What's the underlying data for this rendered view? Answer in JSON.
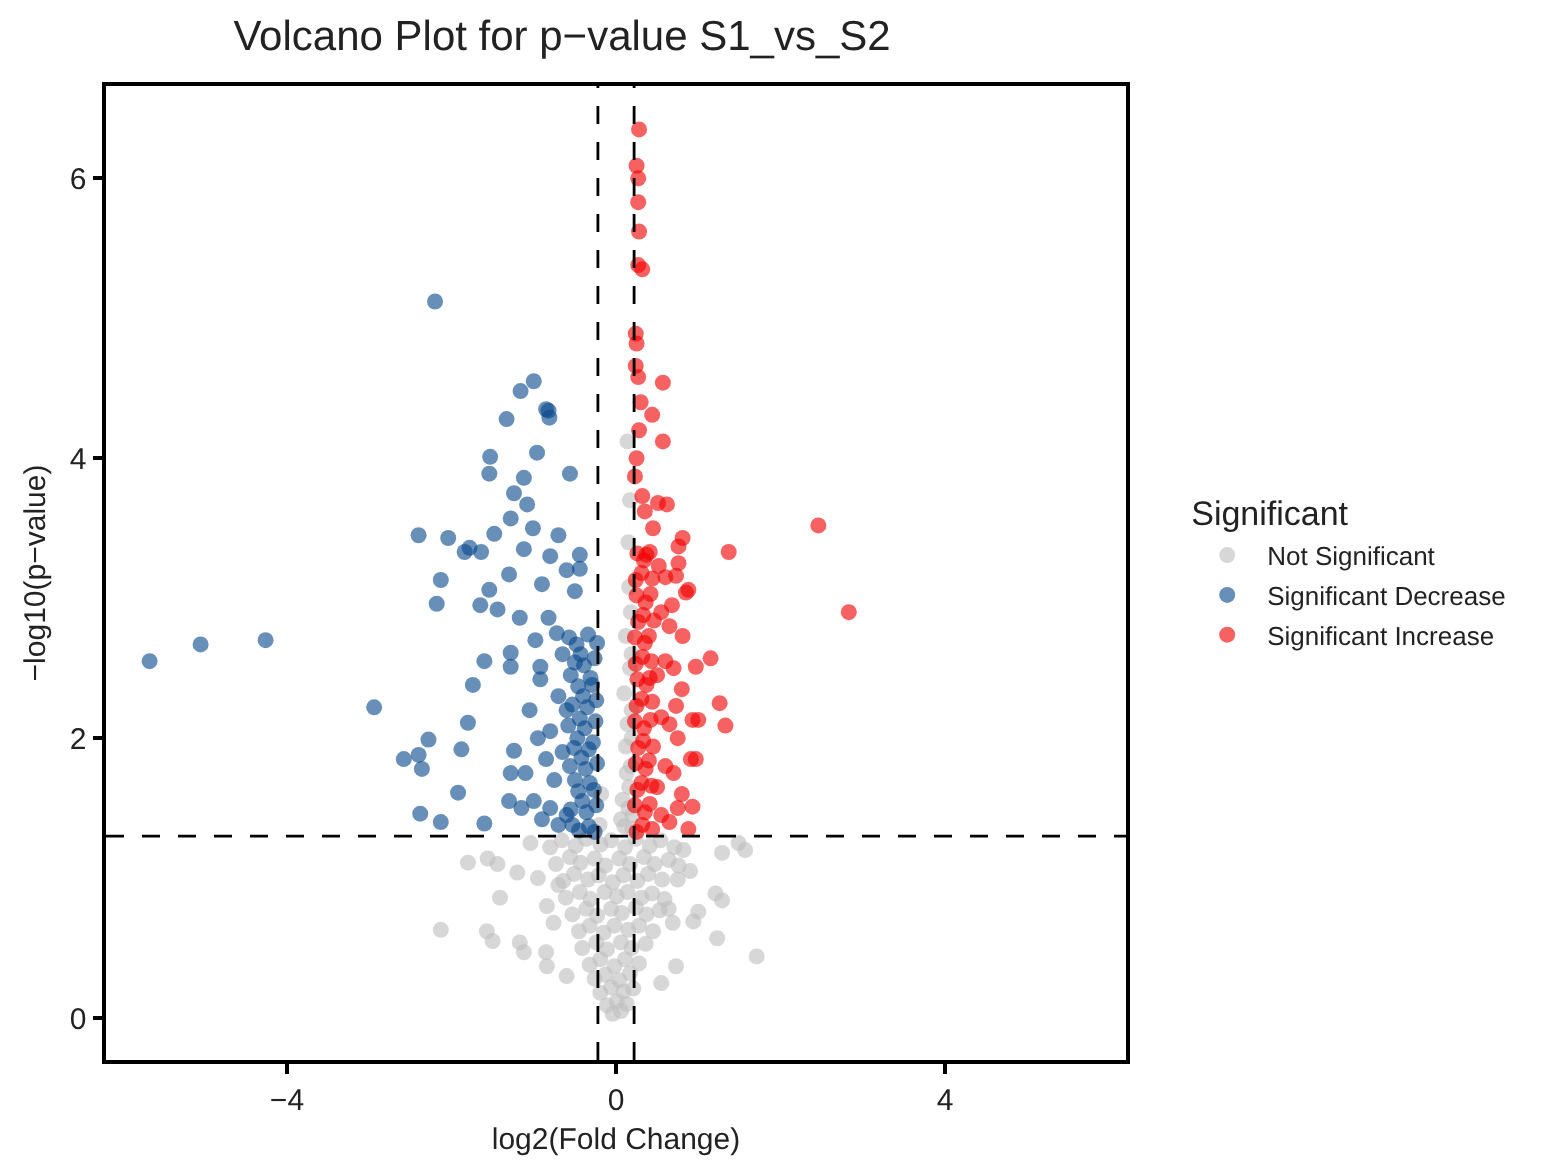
{
  "chart_data": {
    "type": "scatter",
    "title": "Volcano Plot for p−value S1_vs_S2",
    "xlabel": "log2(Fold Change)",
    "ylabel": "−log10(p−value)",
    "legend_title": "Significant",
    "legend": "right",
    "marker": "circle",
    "grid": false,
    "xlim": [
      -6.2,
      6.2
    ],
    "xticks": [
      {
        "value": -4,
        "label": "−4"
      },
      0,
      4
    ],
    "ylim": [
      -0.3,
      6.66
    ],
    "yticks": [
      0,
      2,
      4,
      6
    ],
    "ref_lines": [
      {
        "axis": "x",
        "value": -0.22,
        "color": "#000000",
        "line_style": "dashed"
      },
      {
        "axis": "x",
        "value": 0.22,
        "color": "#000000",
        "line_style": "dashed"
      },
      {
        "axis": "y",
        "value": 1.3,
        "color": "#000000",
        "line_style": "dashed"
      }
    ],
    "series": [
      {
        "name": "Not Significant",
        "color": "#bebebe",
        "x": [
          -0.8,
          -0.66,
          -0.49,
          -0.36,
          -0.19,
          -0.06,
          0.11,
          0.24,
          0.41,
          0.54,
          0.71,
          -0.73,
          -0.56,
          -0.43,
          -0.26,
          -0.13,
          0.04,
          0.17,
          0.34,
          0.47,
          0.64,
          -0.64,
          -0.51,
          -0.34,
          -0.21,
          -0.04,
          0.09,
          0.26,
          0.39,
          0.56,
          -0.61,
          -0.44,
          -0.31,
          -0.14,
          0.01,
          0.14,
          0.31,
          0.44,
          0.59,
          -0.53,
          -0.36,
          -0.23,
          -0.06,
          0.07,
          0.24,
          0.37,
          0.53,
          -0.45,
          -0.32,
          -0.15,
          -0.02,
          0.15,
          0.28,
          0.45,
          -0.41,
          -0.24,
          -0.11,
          0.06,
          0.19,
          0.36,
          -0.32,
          -0.19,
          -0.02,
          0.11,
          0.28,
          -0.26,
          -0.13,
          0.04,
          0.17,
          -0.19,
          -0.06,
          0.09,
          0.21,
          -0.11,
          0.01,
          0.13,
          -0.04,
          0.06,
          -2.13,
          -1.8,
          -1.56,
          -1.44,
          -1.2,
          -1.41,
          -1.57,
          -1.5,
          -1.17,
          -1.12,
          -0.85,
          -0.84,
          -1.04,
          -0.84,
          -0.76,
          1.49,
          1.57,
          1.29,
          0.82,
          1.21,
          1.29,
          1.0,
          0.94,
          1.23,
          1.71,
          0.76,
          0.75,
          0.73,
          0.64,
          0.69,
          -0.95,
          -0.6,
          0.55,
          0.9,
          -0.7,
          0.14,
          0.16,
          0.12,
          0.1,
          0.12,
          0.08,
          0.1,
          0.15,
          0.18,
          0.14,
          0.17,
          0.15,
          0.18,
          0.19,
          0.13,
          0.06,
          0.17,
          0.19,
          0.2,
          0.16,
          0.19,
          0.2,
          -0.2,
          -0.18
        ],
        "values": [
          1.22,
          1.27,
          1.23,
          1.28,
          1.24,
          1.27,
          1.22,
          1.28,
          1.23,
          1.27,
          1.22,
          1.1,
          1.15,
          1.11,
          1.14,
          1.09,
          1.14,
          1.1,
          1.15,
          1.1,
          1.13,
          0.98,
          1.03,
          0.99,
          1.02,
          0.97,
          1.02,
          0.98,
          1.03,
          0.99,
          0.86,
          0.9,
          0.85,
          0.9,
          0.87,
          0.9,
          0.86,
          0.89,
          0.85,
          0.74,
          0.78,
          0.73,
          0.78,
          0.75,
          0.79,
          0.74,
          0.77,
          0.62,
          0.66,
          0.61,
          0.66,
          0.63,
          0.66,
          0.62,
          0.5,
          0.54,
          0.49,
          0.54,
          0.5,
          0.53,
          0.38,
          0.42,
          0.37,
          0.42,
          0.39,
          0.28,
          0.31,
          0.27,
          0.32,
          0.18,
          0.22,
          0.19,
          0.21,
          0.09,
          0.12,
          0.1,
          0.03,
          0.05,
          0.63,
          1.11,
          1.14,
          1.1,
          1.04,
          0.86,
          0.62,
          0.55,
          0.54,
          0.47,
          0.47,
          0.37,
          1.25,
          0.8,
          0.68,
          1.25,
          1.2,
          1.18,
          1.2,
          0.89,
          0.84,
          0.76,
          0.69,
          0.57,
          0.44,
          1.09,
          0.99,
          0.37,
          0.78,
          0.68,
          1.0,
          0.3,
          0.25,
          1.05,
          0.95,
          4.12,
          3.08,
          2.73,
          2.32,
          1.94,
          1.56,
          1.37,
          1.5,
          1.8,
          2.1,
          2.5,
          3.4,
          2.9,
          2.6,
          1.75,
          1.42,
          3.7,
          2.2,
          1.45,
          1.65,
          2.0,
          1.35,
          1.38,
          1.6
        ]
      },
      {
        "name": "Significant Decrease",
        "color": "#0b4a8c",
        "x": [
          -5.67,
          -5.05,
          -4.26,
          -2.94,
          -2.2,
          -2.4,
          -2.04,
          -2.13,
          -2.18,
          -1.84,
          -1.78,
          -1.48,
          -1.64,
          -1.33,
          -0.82,
          -0.81,
          -1.0,
          -1.16,
          -0.85,
          -1.53,
          -1.54,
          -0.96,
          -1.12,
          -0.56,
          -1.24,
          -1.08,
          -1.28,
          -1.01,
          -1.12,
          -0.8,
          -0.44,
          -0.44,
          -1.54,
          -1.3,
          -1.65,
          -1.44,
          -1.17,
          -0.82,
          -1.74,
          -1.6,
          -1.28,
          -1.28,
          -1.8,
          -1.88,
          -2.28,
          -2.4,
          -2.58,
          -2.36,
          -1.92,
          -2.38,
          -2.13,
          -1.6,
          -1.24,
          -1.28,
          -0.92,
          -0.92,
          -0.6,
          -0.7,
          -0.8,
          -0.9,
          -1.0,
          -0.65,
          -0.75,
          -0.85,
          -0.6,
          -0.7,
          -0.8,
          -0.65,
          -0.72,
          -1.05,
          -1.1,
          -0.95,
          -1.15,
          -1.3,
          -0.5,
          -0.6,
          -0.9,
          -0.7,
          -0.98,
          -0.26,
          -0.33,
          -0.45,
          -0.53,
          -0.24,
          -0.36,
          -0.41,
          -0.55,
          -0.27,
          -0.32,
          -0.46,
          -0.5,
          -0.23,
          -0.37,
          -0.42,
          -0.56,
          -0.28,
          -0.33,
          -0.47,
          -0.51,
          -0.25,
          -0.38,
          -0.44,
          -0.58,
          -0.24,
          -0.35,
          -0.4,
          -0.53,
          -0.29,
          -0.31,
          -0.46,
          -0.55,
          -0.26,
          -0.39,
          -0.43,
          -0.5,
          -0.23,
          -0.34,
          -0.48,
          -0.57
        ],
        "values": [
          2.55,
          2.67,
          2.7,
          2.22,
          5.12,
          3.45,
          3.43,
          3.13,
          2.96,
          3.33,
          3.36,
          3.46,
          3.33,
          4.28,
          4.34,
          4.29,
          4.55,
          4.48,
          4.35,
          4.01,
          3.89,
          4.04,
          3.86,
          3.89,
          3.75,
          3.67,
          3.57,
          3.5,
          3.35,
          3.3,
          3.31,
          3.21,
          3.06,
          3.17,
          2.95,
          2.92,
          2.86,
          2.86,
          2.38,
          2.55,
          2.61,
          2.51,
          2.11,
          1.92,
          1.99,
          1.88,
          1.85,
          1.78,
          1.61,
          1.46,
          1.4,
          1.39,
          1.91,
          1.75,
          2.51,
          2.42,
          1.45,
          1.38,
          1.5,
          1.42,
          1.55,
          1.9,
          1.7,
          1.85,
          2.2,
          2.3,
          2.05,
          2.6,
          2.75,
          2.2,
          1.75,
          2.0,
          1.5,
          1.55,
          3.05,
          3.2,
          3.1,
          3.45,
          2.7,
          1.33,
          1.37,
          1.34,
          1.38,
          1.52,
          1.47,
          1.55,
          1.49,
          1.63,
          1.68,
          1.62,
          1.7,
          1.82,
          1.78,
          1.86,
          1.8,
          1.97,
          1.92,
          2.0,
          1.93,
          2.12,
          2.07,
          2.14,
          2.09,
          2.27,
          2.22,
          2.3,
          2.24,
          2.38,
          2.43,
          2.37,
          2.45,
          2.57,
          2.52,
          2.6,
          2.54,
          2.68,
          2.74,
          2.67,
          2.72
        ]
      },
      {
        "name": "Significant Increase",
        "color": "#f00000",
        "x": [
          0.28,
          0.25,
          0.27,
          0.27,
          0.28,
          0.27,
          0.32,
          0.24,
          0.25,
          0.24,
          0.27,
          0.57,
          0.3,
          0.44,
          0.28,
          0.57,
          0.25,
          0.23,
          0.32,
          0.51,
          0.62,
          0.35,
          2.46,
          1.37,
          2.83,
          0.81,
          0.76,
          0.37,
          0.52,
          0.76,
          0.88,
          0.73,
          1.15,
          1.26,
          1.33,
          0.93,
          0.91,
          0.93,
          0.88,
          0.85,
          0.81,
          0.97,
          0.73,
          1.0,
          0.97,
          0.55,
          0.65,
          0.75,
          0.5,
          0.6,
          0.7,
          0.55,
          0.65,
          0.5,
          0.6,
          0.7,
          0.55,
          0.65,
          0.6,
          0.45,
          0.8,
          0.75,
          0.8,
          0.68,
          0.25,
          0.32,
          0.44,
          0.23,
          0.35,
          0.41,
          0.26,
          0.31,
          0.43,
          0.24,
          0.36,
          0.4,
          0.27,
          0.33,
          0.45,
          0.23,
          0.34,
          0.42,
          0.25,
          0.31,
          0.44,
          0.26,
          0.37,
          0.41,
          0.24,
          0.32,
          0.43,
          0.23,
          0.35,
          0.4,
          0.27,
          0.33,
          0.46,
          0.25,
          0.36,
          0.42,
          0.24,
          0.31,
          0.44,
          0.26,
          0.34,
          0.41
        ],
        "values": [
          6.35,
          6.09,
          6.0,
          5.83,
          5.62,
          5.38,
          5.35,
          4.89,
          4.82,
          4.66,
          4.58,
          4.54,
          4.4,
          4.31,
          4.2,
          4.12,
          4.0,
          3.87,
          3.73,
          3.68,
          3.67,
          3.62,
          3.52,
          3.33,
          2.9,
          3.43,
          3.37,
          3.31,
          3.23,
          3.25,
          3.06,
          3.16,
          2.57,
          2.25,
          2.09,
          2.13,
          1.85,
          1.51,
          1.35,
          3.04,
          2.73,
          2.51,
          2.23,
          2.13,
          1.85,
          1.45,
          1.4,
          1.5,
          1.65,
          1.8,
          1.75,
          2.15,
          2.1,
          2.45,
          2.55,
          2.5,
          2.9,
          2.8,
          3.15,
          3.5,
          1.6,
          2.0,
          2.35,
          2.95,
          1.33,
          1.38,
          1.35,
          1.52,
          1.47,
          1.53,
          1.63,
          1.68,
          1.66,
          1.82,
          1.78,
          1.84,
          1.93,
          1.98,
          1.94,
          2.12,
          2.07,
          2.13,
          2.23,
          2.28,
          2.26,
          2.42,
          2.38,
          2.43,
          2.53,
          2.58,
          2.55,
          2.72,
          2.68,
          2.73,
          2.83,
          2.88,
          2.84,
          3.02,
          2.97,
          3.03,
          3.13,
          3.18,
          3.14,
          3.32,
          3.27,
          3.33
        ]
      }
    ]
  }
}
